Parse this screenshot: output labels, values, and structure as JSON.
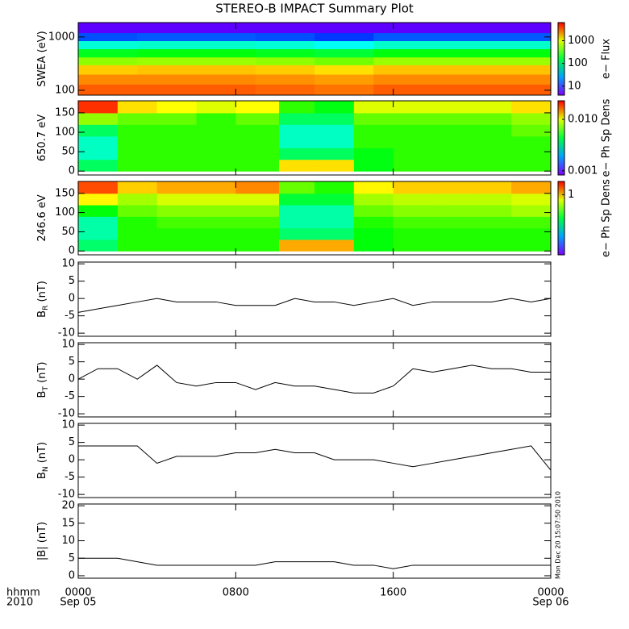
{
  "title": "STEREO-B IMPACT Summary Plot",
  "timestamp": "Mon Dec 20 15:07:50 2010",
  "x_axis": {
    "xlim": [
      0,
      24
    ],
    "labels": [
      "hhmm",
      "2010"
    ],
    "xticks": [
      {
        "value": 0,
        "label": "0000",
        "sublabel": "Sep 05"
      },
      {
        "value": 8,
        "label": "0800"
      },
      {
        "value": 16,
        "label": "1600"
      },
      {
        "value": 24,
        "label": "0000",
        "sublabel": "Sep 06"
      }
    ]
  },
  "chart_data": [
    {
      "type": "heatmap",
      "ylabel": [
        "SWEA (eV)"
      ],
      "log_y": true,
      "ylim": [
        81,
        1860
      ],
      "yticks": [
        100,
        1000
      ],
      "x_edges": [
        0,
        3,
        6,
        9,
        12,
        15,
        18,
        21,
        24
      ],
      "y_edges": [
        81,
        130,
        200,
        300,
        420,
        600,
        850,
        1200,
        1860
      ],
      "values": [
        [
          3500,
          3500,
          3500,
          3300,
          3000,
          3500,
          3500,
          3500
        ],
        [
          2600,
          2600,
          2600,
          2500,
          2300,
          2600,
          2600,
          2600
        ],
        [
          1700,
          1800,
          1800,
          1700,
          1500,
          1800,
          1800,
          1800
        ],
        [
          600,
          650,
          650,
          600,
          500,
          650,
          650,
          650
        ],
        [
          200,
          220,
          220,
          200,
          170,
          220,
          220,
          220
        ],
        [
          60,
          65,
          65,
          60,
          50,
          65,
          65,
          65
        ],
        [
          15,
          16,
          16,
          15,
          13,
          16,
          16,
          16
        ],
        [
          5,
          5,
          5,
          5,
          5,
          5,
          5,
          5
        ]
      ],
      "colorbar": {
        "label": "e− Flux",
        "lim": [
          4,
          6300
        ],
        "ticks": [
          10,
          100,
          1000
        ]
      }
    },
    {
      "type": "heatmap",
      "ylabel": [
        "650.7 eV"
      ],
      "ylim": [
        -10,
        181
      ],
      "yticks": [
        0,
        50,
        100,
        150
      ],
      "x_edges": [
        0,
        2,
        4,
        6,
        8,
        10.2,
        12,
        14,
        16,
        18,
        20,
        22,
        24
      ],
      "y_edges": [
        0,
        30,
        60,
        90,
        120,
        150,
        180
      ],
      "values": [
        [
          0.004,
          0.006,
          0.006,
          0.006,
          0.006,
          0.012,
          0.012,
          0.005,
          0.006,
          0.006,
          0.006,
          0.006
        ],
        [
          0.003,
          0.006,
          0.006,
          0.006,
          0.006,
          0.004,
          0.004,
          0.005,
          0.006,
          0.006,
          0.006,
          0.006
        ],
        [
          0.003,
          0.006,
          0.006,
          0.006,
          0.006,
          0.003,
          0.003,
          0.006,
          0.006,
          0.006,
          0.006,
          0.006
        ],
        [
          0.004,
          0.006,
          0.006,
          0.006,
          0.006,
          0.003,
          0.003,
          0.006,
          0.006,
          0.006,
          0.006,
          0.007
        ],
        [
          0.008,
          0.007,
          0.007,
          0.006,
          0.007,
          0.004,
          0.004,
          0.007,
          0.007,
          0.007,
          0.007,
          0.008
        ],
        [
          0.02,
          0.012,
          0.011,
          0.01,
          0.011,
          0.006,
          0.005,
          0.01,
          0.01,
          0.01,
          0.01,
          0.012
        ]
      ],
      "colorbar": {
        "label": "e− Ph Sp Dens",
        "lim": [
          0.00083,
          0.023
        ],
        "ticks": [
          0.001,
          {
            "value": 0.01,
            "label": "0.010"
          }
        ]
      }
    },
    {
      "type": "heatmap",
      "ylabel": [
        "246.6 eV"
      ],
      "ylim": [
        -10,
        181
      ],
      "yticks": [
        0,
        50,
        100,
        150
      ],
      "x_edges": [
        0,
        2,
        4,
        6,
        8,
        10.2,
        12,
        14,
        16,
        18,
        20,
        22,
        24
      ],
      "y_edges": [
        0,
        30,
        60,
        90,
        120,
        150,
        180
      ],
      "values": [
        [
          0.35,
          0.5,
          0.5,
          0.5,
          0.5,
          1.1,
          1.1,
          0.45,
          0.5,
          0.5,
          0.5,
          0.5
        ],
        [
          0.3,
          0.5,
          0.5,
          0.5,
          0.5,
          0.35,
          0.35,
          0.45,
          0.5,
          0.5,
          0.5,
          0.5
        ],
        [
          0.3,
          0.5,
          0.55,
          0.55,
          0.55,
          0.3,
          0.3,
          0.5,
          0.55,
          0.55,
          0.55,
          0.55
        ],
        [
          0.45,
          0.6,
          0.65,
          0.65,
          0.65,
          0.3,
          0.3,
          0.6,
          0.65,
          0.65,
          0.65,
          0.7
        ],
        [
          0.9,
          0.7,
          0.8,
          0.8,
          0.8,
          0.4,
          0.4,
          0.7,
          0.75,
          0.75,
          0.75,
          0.8
        ],
        [
          1.4,
          1.0,
          1.1,
          1.1,
          1.2,
          0.6,
          0.5,
          0.9,
          1.0,
          1.0,
          1.0,
          1.1
        ]
      ],
      "colorbar": {
        "label": "e− Ph Sp Dens",
        "lim": [
          0.09,
          1.7
        ],
        "ticks": [
          1
        ]
      }
    },
    {
      "type": "line",
      "ylabel": [
        "B",
        "R",
        " (nT)"
      ],
      "ylim": [
        -10.9,
        10.5
      ],
      "yticks": [
        -10,
        -5,
        0,
        5,
        10
      ],
      "x": [
        0,
        1,
        2,
        3,
        4,
        5,
        6,
        7,
        8,
        9,
        10,
        11,
        12,
        13,
        14,
        15,
        16,
        17,
        18,
        19,
        20,
        21,
        22,
        23,
        24
      ],
      "values": [
        -4,
        -3,
        -2,
        -1,
        0,
        -1,
        -1,
        -1,
        -2,
        -2,
        -2,
        0,
        -1,
        -1,
        -2,
        -1,
        0,
        -2,
        -1,
        -1,
        -1,
        -1,
        0,
        -1,
        0
      ]
    },
    {
      "type": "line",
      "ylabel": [
        "B",
        "T",
        " (nT)"
      ],
      "ylim": [
        -10.9,
        10.5
      ],
      "yticks": [
        -10,
        -5,
        0,
        5,
        10
      ],
      "x": [
        0,
        1,
        2,
        3,
        4,
        5,
        6,
        7,
        8,
        9,
        10,
        11,
        12,
        13,
        14,
        15,
        16,
        17,
        18,
        19,
        20,
        21,
        22,
        23,
        24
      ],
      "values": [
        0,
        3,
        3,
        0,
        4,
        -1,
        -2,
        -1,
        -1,
        -3,
        -1,
        -2,
        -2,
        -3,
        -4,
        -4,
        -2,
        3,
        2,
        3,
        4,
        3,
        3,
        2,
        2
      ]
    },
    {
      "type": "line",
      "ylabel": [
        "B",
        "N",
        " (nT)"
      ],
      "ylim": [
        -10.9,
        10.5
      ],
      "yticks": [
        -10,
        -5,
        0,
        5,
        10
      ],
      "x": [
        0,
        1,
        2,
        3,
        4,
        5,
        6,
        7,
        8,
        9,
        10,
        11,
        12,
        13,
        14,
        15,
        16,
        17,
        18,
        19,
        20,
        21,
        22,
        23,
        24
      ],
      "values": [
        4,
        4,
        4,
        4,
        -1,
        1,
        1,
        1,
        2,
        2,
        3,
        2,
        2,
        0,
        0,
        0,
        -1,
        -2,
        -1,
        0,
        1,
        2,
        3,
        4,
        -3
      ]
    },
    {
      "type": "line",
      "ylabel": [
        "|B| (nT)"
      ],
      "ylim": [
        -0.7,
        20.5
      ],
      "yticks": [
        0,
        5,
        10,
        15,
        20
      ],
      "x": [
        0,
        1,
        2,
        3,
        4,
        5,
        6,
        7,
        8,
        9,
        10,
        11,
        12,
        13,
        14,
        15,
        16,
        17,
        18,
        19,
        20,
        21,
        22,
        23,
        24
      ],
      "values": [
        5,
        5,
        5,
        4,
        3,
        3,
        3,
        3,
        3,
        3,
        4,
        4,
        4,
        4,
        3,
        3,
        2,
        3,
        3,
        3,
        3,
        3,
        3,
        3,
        3
      ]
    }
  ]
}
